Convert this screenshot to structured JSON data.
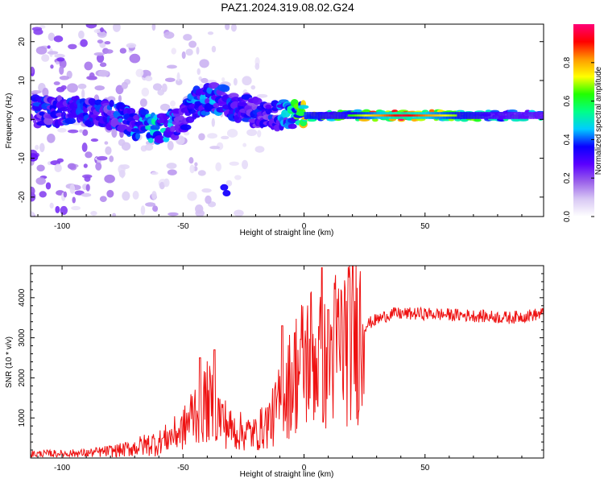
{
  "title": "PAZ1.2024.319.08.02.G24",
  "colors": {
    "snr_line": "#ee1111",
    "colormap": [
      "#ffffff",
      "#d8c8f4",
      "#9a60ea",
      "#5a00ff",
      "#0a00ff",
      "#00ccff",
      "#00ff88",
      "#22ff00",
      "#ffff00",
      "#ff9900",
      "#ff0000",
      "#ff0077"
    ]
  },
  "chart_data": [
    {
      "type": "heatmap",
      "title": "",
      "xlabel": "Height of straight line (km)",
      "ylabel": "Frequency (Hz)",
      "xlim": [
        -113,
        99
      ],
      "ylim": [
        -25,
        24.5
      ],
      "x_ticks": [
        -100,
        -50,
        0,
        50
      ],
      "y_ticks": [
        -20,
        -10,
        0,
        10,
        20
      ],
      "colorbar": {
        "label": "Normalized spectral amplitude",
        "range": [
          0,
          1
        ],
        "ticks": [
          "0.0",
          "0.2",
          "0.4",
          "0.6",
          "0.8"
        ]
      },
      "ridge": [
        {
          "x": -90,
          "f": 2,
          "a": 0.35
        },
        {
          "x": -80,
          "f": 1,
          "a": 0.35
        },
        {
          "x": -70,
          "f": -1,
          "a": 0.4
        },
        {
          "x": -60,
          "f": -2.5,
          "a": 0.5
        },
        {
          "x": -52,
          "f": -1,
          "a": 0.35
        },
        {
          "x": -45,
          "f": 4,
          "a": 0.4
        },
        {
          "x": -38,
          "f": 5.5,
          "a": 0.4
        },
        {
          "x": -30,
          "f": 4,
          "a": 0.35
        },
        {
          "x": -22,
          "f": 2,
          "a": 0.35
        },
        {
          "x": -15,
          "f": 1,
          "a": 0.35
        },
        {
          "x": -8,
          "f": 1.5,
          "a": 0.4
        },
        {
          "x": 0,
          "f": 1,
          "a": 0.7
        },
        {
          "x": 10,
          "f": 1,
          "a": 0.55
        },
        {
          "x": 20,
          "f": 1,
          "a": 0.65
        },
        {
          "x": 40,
          "f": 1,
          "a": 0.95
        },
        {
          "x": 60,
          "f": 1,
          "a": 0.7
        },
        {
          "x": 80,
          "f": 1,
          "a": 0.5
        },
        {
          "x": 99,
          "f": 1,
          "a": 0.45
        }
      ],
      "side_features": [
        {
          "x": -33,
          "f": -17.5,
          "a": 0.35
        },
        {
          "x": -32,
          "f": -19,
          "a": 0.35
        }
      ]
    },
    {
      "type": "line",
      "title": "",
      "xlabel": "Height of straight line (km)",
      "ylabel": "SNR (10 * v/v)",
      "xlim": [
        -113,
        99
      ],
      "ylim": [
        0,
        4800
      ],
      "x_ticks": [
        -100,
        -50,
        0,
        50
      ],
      "y_ticks": [
        1000,
        2000,
        3000,
        4000
      ],
      "envelope": [
        {
          "x": -113,
          "y": 100
        },
        {
          "x": -90,
          "y": 120
        },
        {
          "x": -75,
          "y": 200
        },
        {
          "x": -60,
          "y": 400
        },
        {
          "x": -50,
          "y": 700
        },
        {
          "x": -45,
          "y": 1200
        },
        {
          "x": -40,
          "y": 1400
        },
        {
          "x": -30,
          "y": 700
        },
        {
          "x": -20,
          "y": 600
        },
        {
          "x": -13,
          "y": 1000
        },
        {
          "x": -8,
          "y": 1600
        },
        {
          "x": -3,
          "y": 2200
        },
        {
          "x": 3,
          "y": 2600
        },
        {
          "x": 8,
          "y": 2300
        },
        {
          "x": 12,
          "y": 2700
        },
        {
          "x": 20,
          "y": 3100
        },
        {
          "x": 28,
          "y": 3400
        },
        {
          "x": 36,
          "y": 3600
        },
        {
          "x": 50,
          "y": 3600
        },
        {
          "x": 70,
          "y": 3550
        },
        {
          "x": 85,
          "y": 3500
        },
        {
          "x": 99,
          "y": 3600
        }
      ],
      "spikes": [
        {
          "x": -43,
          "y": 2500
        },
        {
          "x": -37,
          "y": 2700
        },
        {
          "x": -9,
          "y": 3300
        },
        {
          "x": 7.5,
          "y": 4750
        },
        {
          "x": 7.9,
          "y": 900
        },
        {
          "x": 10,
          "y": 3700
        }
      ]
    }
  ]
}
